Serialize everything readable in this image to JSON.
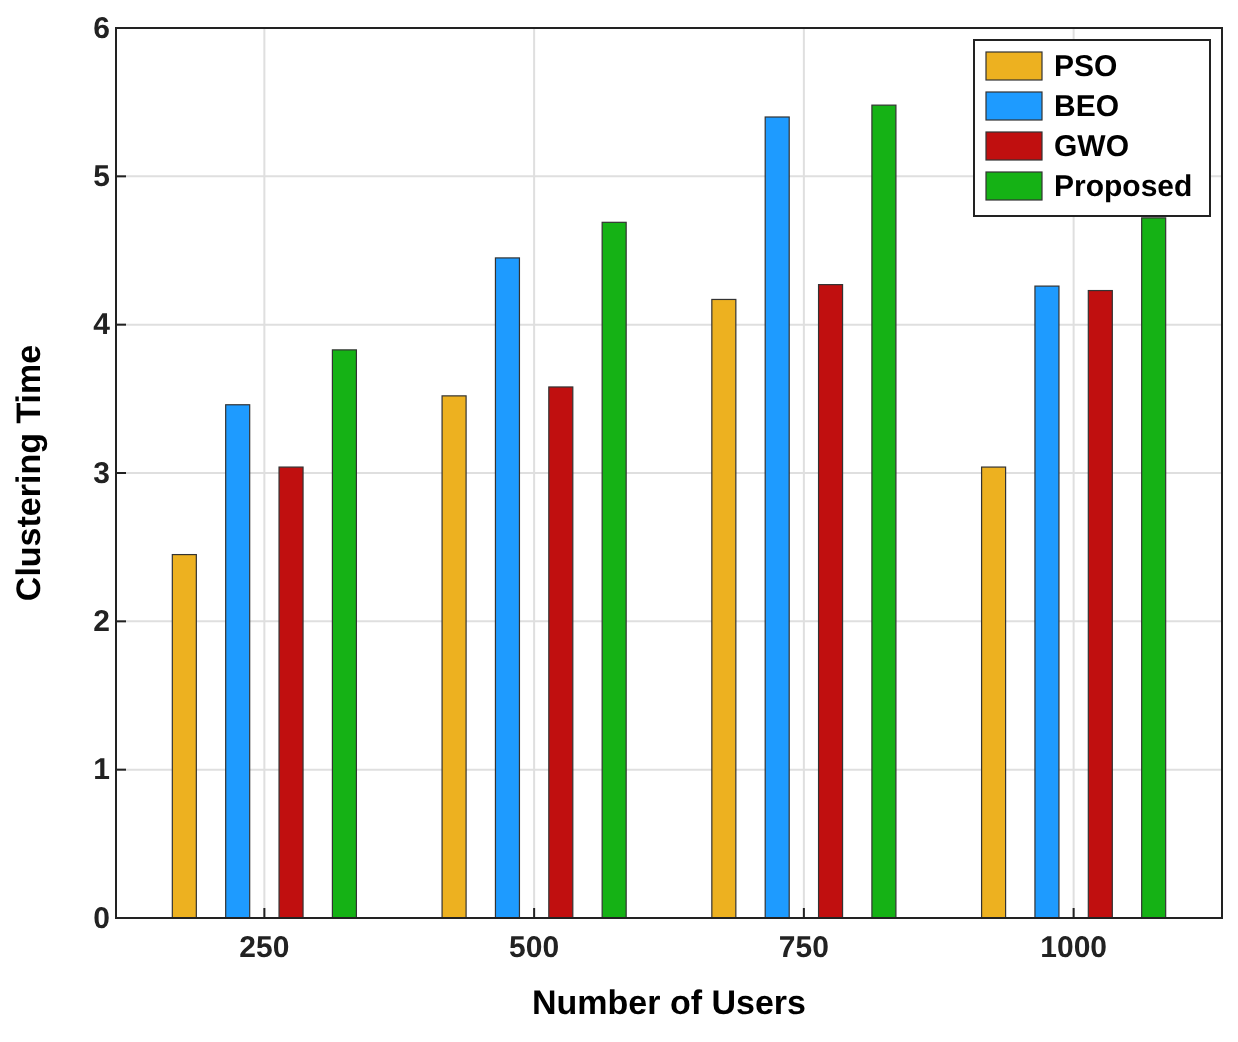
{
  "chart_data": {
    "type": "bar",
    "xlabel": "Number of Users",
    "ylabel": "Clustering Time",
    "categories": [
      "250",
      "500",
      "750",
      "1000"
    ],
    "series": [
      {
        "name": "PSO",
        "color": "#edb120",
        "values": [
          2.45,
          3.52,
          4.17,
          3.04
        ]
      },
      {
        "name": "BEO",
        "color": "#1e9bff",
        "values": [
          3.46,
          4.45,
          5.4,
          4.26
        ]
      },
      {
        "name": "GWO",
        "color": "#c00f0f",
        "values": [
          3.04,
          3.58,
          4.27,
          4.23
        ]
      },
      {
        "name": "Proposed",
        "color": "#15b215",
        "values": [
          3.83,
          4.69,
          5.48,
          4.72
        ]
      }
    ],
    "ylim": [
      0,
      6
    ],
    "yticks": [
      0,
      1,
      2,
      3,
      4,
      5,
      6
    ],
    "grid": true,
    "legend": "top right"
  }
}
